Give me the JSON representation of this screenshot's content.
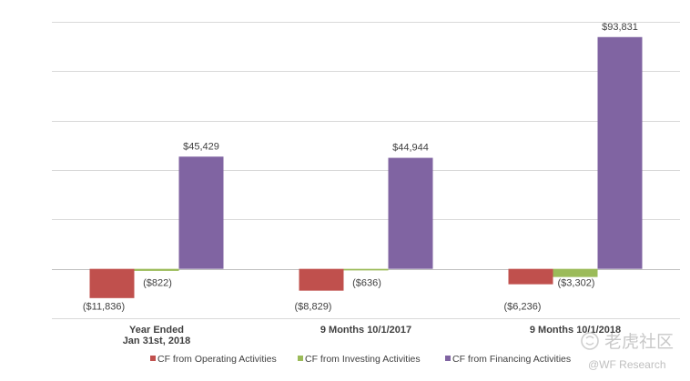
{
  "chart_data": {
    "type": "bar",
    "categories": [
      [
        "Year Ended",
        "Jan 31st, 2018"
      ],
      [
        "9 Months 10/1/2017"
      ],
      [
        "9 Months 10/1/2018"
      ]
    ],
    "series": [
      {
        "name": "CF from Operating Activities",
        "color": "#c0504d",
        "values": [
          -11836,
          -8829,
          -6236
        ],
        "labels": [
          "($11,836)",
          "($8,829)",
          "($6,236)"
        ]
      },
      {
        "name": "CF from Investing Activities",
        "color": "#9bbb59",
        "values": [
          -822,
          -636,
          -3302
        ],
        "labels": [
          "($822)",
          "($636)",
          "($3,302)"
        ]
      },
      {
        "name": "CF from Financing Activities",
        "color": "#8064a2",
        "values": [
          45429,
          44944,
          93831
        ],
        "labels": [
          "$45,429",
          "$44,944",
          "$93,831"
        ]
      }
    ],
    "ylim": [
      -20000,
      100000
    ],
    "grid": true,
    "legend_position": "bottom"
  },
  "watermark": {
    "title": "老虎社区",
    "subtitle": "@WF Research",
    "icon": "tiger-logo-icon"
  }
}
